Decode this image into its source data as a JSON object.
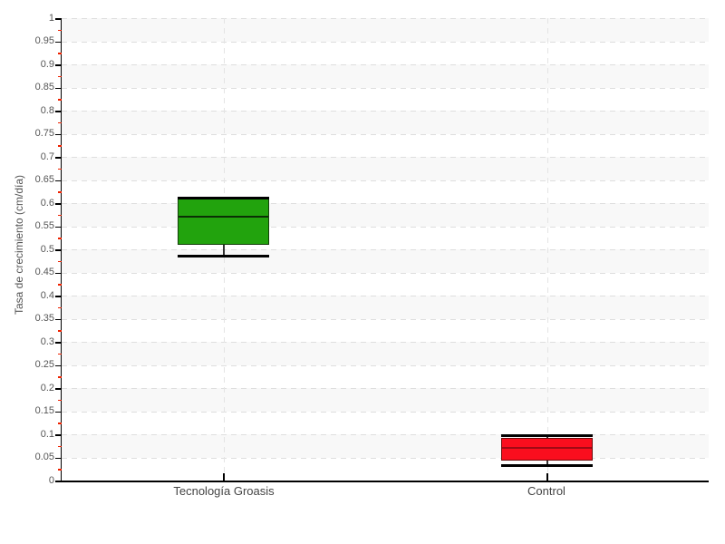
{
  "chart_data": {
    "type": "boxplot",
    "title": "",
    "xlabel": "",
    "ylabel": "Tasa de crecimiento (cm/día)",
    "ylim": [
      0,
      1
    ],
    "ytick_step": 0.05,
    "yminor_step": 0.025,
    "ytick_labels": [
      "1",
      "0.95",
      "0.9",
      "0.85",
      "0.8",
      "0.75",
      "0.7",
      "0.65",
      "0.6",
      "0.55",
      "0.5",
      "0.45",
      "0.4",
      "0.35",
      "0.3",
      "0.25",
      "0.2",
      "0.15",
      "0.1",
      "0.05",
      "0"
    ],
    "categories": [
      "Tecnología Groasis",
      "Control"
    ],
    "series": [
      {
        "name": "Tecnología Groasis",
        "min": 0.486,
        "q1": 0.51,
        "median": 0.57,
        "q3": 0.61,
        "max": 0.61,
        "fill": "#22a30d",
        "border": "#133f09",
        "median_color": "#0b2f05"
      },
      {
        "name": "Control",
        "min": 0.032,
        "q1": 0.044,
        "median": 0.07,
        "q3": 0.093,
        "max": 0.098,
        "fill": "#fa0e1e",
        "border": "#6e0a0a",
        "median_color": "#a00a14"
      }
    ],
    "legend": "none",
    "grid": {
      "horizontal": "dashed",
      "vertical_at_categories": "dashed",
      "alt_bands": true
    },
    "style": {
      "band_color": "#f8f8f8",
      "grid_color": "#dedede",
      "vgrid_color": "#e4e4e4",
      "axis_color": "#000000",
      "major_tick_color": "#000000",
      "minor_tick_color": "#ee2200",
      "whisker_color": "#000000",
      "whisker_stem_color": "#333333",
      "tick_label_color": "#555555",
      "category_label_color": "#444444"
    }
  }
}
